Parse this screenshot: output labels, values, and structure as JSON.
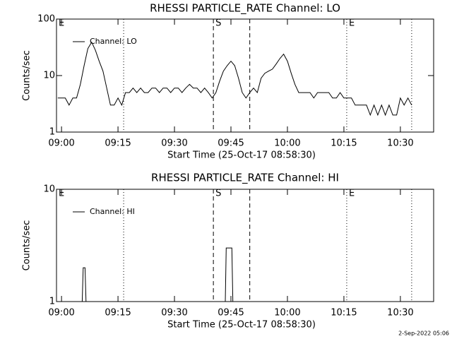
{
  "chart_data": [
    {
      "type": "line",
      "title": "RHESSI PARTICLE_RATE Channel: LO",
      "xlabel": "Start Time (25-Oct-17 08:58:30)",
      "ylabel": "Counts/sec",
      "log_y": true,
      "ylim": [
        1,
        100
      ],
      "yticks": [
        1,
        10,
        100
      ],
      "xlim": [
        "08:58:40",
        "10:38:50"
      ],
      "xticks": [
        "09:00",
        "09:15",
        "09:30",
        "09:45",
        "10:00",
        "10:15",
        "10:30"
      ],
      "x": [
        "08:59",
        "09:00",
        "09:01",
        "09:02",
        "09:03",
        "09:04",
        "09:05",
        "09:06",
        "09:07",
        "09:08",
        "09:09",
        "09:10",
        "09:11",
        "09:12",
        "09:13",
        "09:14",
        "09:15",
        "09:16",
        "09:17",
        "09:18",
        "09:19",
        "09:20",
        "09:21",
        "09:22",
        "09:23",
        "09:24",
        "09:25",
        "09:26",
        "09:27",
        "09:28",
        "09:29",
        "09:30",
        "09:31",
        "09:32",
        "09:33",
        "09:34",
        "09:35",
        "09:36",
        "09:37",
        "09:38",
        "09:39",
        "09:40",
        "09:41",
        "09:42",
        "09:43",
        "09:44",
        "09:45",
        "09:46",
        "09:47",
        "09:48",
        "09:49",
        "09:50",
        "09:51",
        "09:52",
        "09:53",
        "09:54",
        "09:55",
        "09:56",
        "09:57",
        "09:58",
        "09:59",
        "10:00",
        "10:01",
        "10:02",
        "10:03",
        "10:04",
        "10:05",
        "10:06",
        "10:07",
        "10:08",
        "10:09",
        "10:10",
        "10:11",
        "10:12",
        "10:13",
        "10:14",
        "10:15",
        "10:16",
        "10:17",
        "10:18",
        "10:19",
        "10:20",
        "10:21",
        "10:22",
        "10:23",
        "10:24",
        "10:25",
        "10:26",
        "10:27",
        "10:28",
        "10:29",
        "10:30",
        "10:31",
        "10:32",
        "10:33"
      ],
      "series": [
        {
          "name": "Channel: LO",
          "color": "#000000",
          "values": [
            4,
            4,
            4,
            3,
            4,
            4,
            7,
            15,
            30,
            39,
            28,
            18,
            12,
            6,
            3,
            3,
            4,
            3,
            5,
            5,
            6,
            5,
            6,
            5,
            5,
            6,
            6,
            5,
            6,
            6,
            5,
            6,
            6,
            5,
            6,
            7,
            6,
            6,
            5,
            6,
            5,
            4,
            5,
            8,
            12,
            15,
            18,
            15,
            9,
            5,
            4,
            5,
            6,
            5,
            9,
            11,
            12,
            13,
            16,
            20,
            24,
            18,
            11,
            7,
            5,
            5,
            5,
            5,
            4,
            5,
            5,
            5,
            5,
            4,
            4,
            5,
            4,
            4,
            4,
            3,
            3,
            3,
            3,
            2,
            3,
            2,
            3,
            2,
            3,
            2,
            2,
            4,
            3,
            4,
            3
          ]
        }
      ],
      "markers": [
        {
          "x": "09:16:30",
          "style": "dotted"
        },
        {
          "x": "09:40:20",
          "style": "dashed"
        },
        {
          "x": "09:50",
          "style": "dashed"
        },
        {
          "x": "10:15:45",
          "style": "dotted"
        },
        {
          "x": "10:33",
          "style": "dotted"
        }
      ],
      "annotations": [
        {
          "x": "08:58:40",
          "text": "E"
        },
        {
          "x": "09:40:20",
          "text": "S"
        },
        {
          "x": "10:15:45",
          "text": "E"
        }
      ]
    },
    {
      "type": "line",
      "title": "RHESSI PARTICLE_RATE Channel: HI",
      "xlabel": "Start Time (25-Oct-17 08:58:30)",
      "ylabel": "Counts/sec",
      "log_y": true,
      "ylim": [
        1,
        10
      ],
      "yticks": [
        1,
        10
      ],
      "xlim": [
        "08:58:40",
        "10:38:50"
      ],
      "xticks": [
        "09:00",
        "09:15",
        "09:30",
        "09:45",
        "10:00",
        "10:15",
        "10:30"
      ],
      "x": [
        "08:59",
        "09:05:30",
        "09:05:45",
        "09:06:15",
        "09:06:30",
        "09:43:30",
        "09:43:45",
        "09:45:15",
        "09:45:30",
        "10:33"
      ],
      "series": [
        {
          "name": "Channel: HI",
          "color": "#000000",
          "values": [
            1,
            1,
            2,
            2,
            1,
            1,
            3,
            3,
            1,
            1
          ]
        }
      ],
      "markers": [
        {
          "x": "09:16:30",
          "style": "dotted"
        },
        {
          "x": "09:40:20",
          "style": "dashed"
        },
        {
          "x": "09:50",
          "style": "dashed"
        },
        {
          "x": "10:15:45",
          "style": "dotted"
        },
        {
          "x": "10:33",
          "style": "dotted"
        }
      ],
      "annotations": [
        {
          "x": "08:58:40",
          "text": "E"
        },
        {
          "x": "09:40:20",
          "text": "S"
        },
        {
          "x": "10:15:45",
          "text": "E"
        }
      ]
    }
  ],
  "footer": "2-Sep-2022 05:06"
}
